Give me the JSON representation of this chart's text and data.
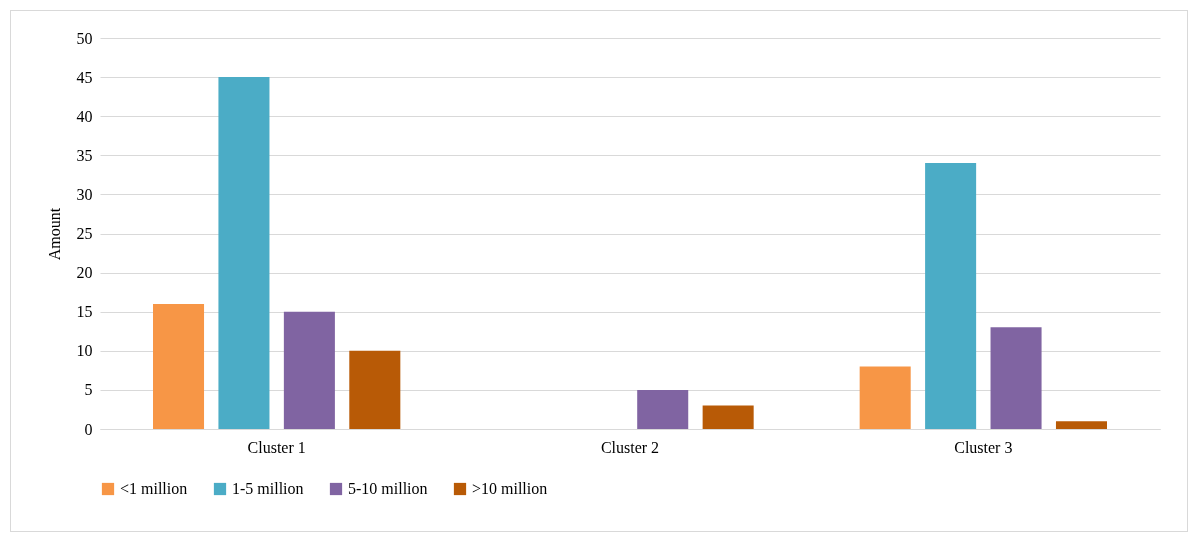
{
  "chart_data": {
    "type": "bar",
    "ylabel": "Amount",
    "categories": [
      "Cluster 1",
      "Cluster 2",
      "Cluster 3"
    ],
    "series": [
      {
        "name": "<1 million",
        "color": "#f79646",
        "values": [
          16,
          0,
          8
        ]
      },
      {
        "name": "1-5 million",
        "color": "#4bacc6",
        "values": [
          45,
          0,
          34
        ]
      },
      {
        "name": "5-10 million",
        "color": "#8064a2",
        "values": [
          15,
          5,
          13
        ]
      },
      {
        "name": ">10 million",
        "color": "#b85a06",
        "values": [
          10,
          3,
          1
        ]
      }
    ],
    "ylim": [
      0,
      50
    ],
    "yticks": [
      0,
      5,
      10,
      15,
      20,
      25,
      30,
      35,
      40,
      45,
      50
    ],
    "grid": "y",
    "legend": "bottom"
  }
}
